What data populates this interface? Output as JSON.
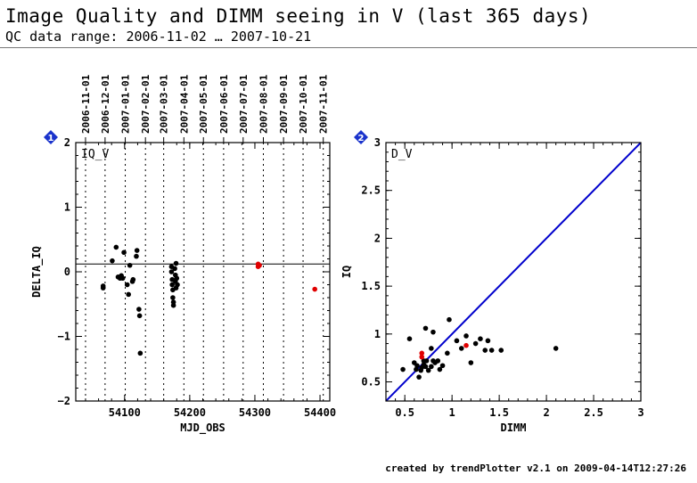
{
  "title": "Image Quality and DIMM seeing in V (last 365 days)",
  "subtitle": "QC data range: 2006-11-02 … 2007-10-21",
  "footer": "created by trendPlotter v2.1 on 2009-04-14T12:27:26",
  "colors": {
    "axis": "#000000",
    "points": "#000000",
    "recent": "#e00000",
    "diagonal": "#0000cc",
    "badge": "#1a33cc"
  },
  "chart_data": [
    {
      "type": "scatter",
      "panel_badge": "1",
      "panel_label": "IQ_V",
      "xlabel": "MJD_OBS",
      "ylabel": "DELTA_IQ",
      "xlim": [
        54025,
        54415
      ],
      "ylim": [
        -2,
        2
      ],
      "x_ticks": [
        54100,
        54200,
        54300,
        54400
      ],
      "y_ticks": [
        -2,
        -1,
        0,
        1,
        2
      ],
      "reference_line_y": 0.12,
      "date_ticks": [
        {
          "label": "2006-11-01",
          "mjd": 54040
        },
        {
          "label": "2006-12-01",
          "mjd": 54070
        },
        {
          "label": "2007-01-01",
          "mjd": 54101
        },
        {
          "label": "2007-02-01",
          "mjd": 54132
        },
        {
          "label": "2007-03-01",
          "mjd": 54160
        },
        {
          "label": "2007-04-01",
          "mjd": 54191
        },
        {
          "label": "2007-05-01",
          "mjd": 54221
        },
        {
          "label": "2007-06-01",
          "mjd": 54252
        },
        {
          "label": "2007-07-01",
          "mjd": 54282
        },
        {
          "label": "2007-08-01",
          "mjd": 54313
        },
        {
          "label": "2007-09-01",
          "mjd": 54344
        },
        {
          "label": "2007-10-01",
          "mjd": 54374
        },
        {
          "label": "2007-11-01",
          "mjd": 54405
        }
      ],
      "series": [
        {
          "color": "#000000",
          "points": [
            [
              54067,
              -0.22
            ],
            [
              54067,
              -0.25
            ],
            [
              54081,
              0.17
            ],
            [
              54087,
              0.38
            ],
            [
              54090,
              -0.08
            ],
            [
              54093,
              -0.1
            ],
            [
              54095,
              -0.06
            ],
            [
              54097,
              -0.1
            ],
            [
              54099,
              0.3
            ],
            [
              54104,
              -0.2
            ],
            [
              54106,
              -0.35
            ],
            [
              54108,
              0.1
            ],
            [
              54112,
              -0.15
            ],
            [
              54113,
              -0.12
            ],
            [
              54118,
              0.24
            ],
            [
              54119,
              0.33
            ],
            [
              54122,
              -0.58
            ],
            [
              54123,
              -0.68
            ],
            [
              54124,
              -1.26
            ],
            [
              54172,
              0.08
            ],
            [
              54172,
              0.0
            ],
            [
              54173,
              -0.12
            ],
            [
              54173,
              -0.2
            ],
            [
              54174,
              -0.28
            ],
            [
              54174,
              -0.4
            ],
            [
              54175,
              -0.47
            ],
            [
              54175,
              -0.52
            ],
            [
              54177,
              0.05
            ],
            [
              54178,
              -0.05
            ],
            [
              54178,
              -0.15
            ],
            [
              54179,
              -0.25
            ],
            [
              54179,
              0.13
            ],
            [
              54180,
              -0.1
            ],
            [
              54181,
              -0.2
            ]
          ]
        },
        {
          "color": "#e00000",
          "points": [
            [
              54305,
              0.08
            ],
            [
              54305,
              0.12
            ],
            [
              54307,
              0.1
            ],
            [
              54392,
              -0.27
            ]
          ]
        }
      ]
    },
    {
      "type": "scatter",
      "panel_badge": "2",
      "panel_label": "D_V",
      "xlabel": "DIMM",
      "ylabel": "IQ",
      "xlim": [
        0.3,
        3
      ],
      "ylim": [
        0.3,
        3
      ],
      "x_ticks": [
        0.5,
        1,
        1.5,
        2,
        2.5,
        3
      ],
      "y_ticks": [
        0.5,
        1,
        1.5,
        2,
        2.5,
        3
      ],
      "diagonal": true,
      "series": [
        {
          "color": "#000000",
          "points": [
            [
              0.48,
              0.63
            ],
            [
              0.55,
              0.95
            ],
            [
              0.6,
              0.7
            ],
            [
              0.62,
              0.63
            ],
            [
              0.63,
              0.67
            ],
            [
              0.65,
              0.55
            ],
            [
              0.67,
              0.62
            ],
            [
              0.68,
              0.65
            ],
            [
              0.7,
              0.68
            ],
            [
              0.7,
              0.72
            ],
            [
              0.72,
              0.66
            ],
            [
              0.73,
              0.72
            ],
            [
              0.72,
              1.06
            ],
            [
              0.75,
              0.62
            ],
            [
              0.78,
              0.66
            ],
            [
              0.78,
              0.85
            ],
            [
              0.8,
              0.72
            ],
            [
              0.8,
              1.02
            ],
            [
              0.82,
              0.7
            ],
            [
              0.85,
              0.72
            ],
            [
              0.87,
              0.63
            ],
            [
              0.9,
              0.67
            ],
            [
              0.95,
              0.8
            ],
            [
              0.97,
              1.15
            ],
            [
              1.05,
              0.93
            ],
            [
              1.1,
              0.85
            ],
            [
              1.15,
              0.98
            ],
            [
              1.2,
              0.7
            ],
            [
              1.25,
              0.9
            ],
            [
              1.3,
              0.95
            ],
            [
              1.35,
              0.83
            ],
            [
              1.38,
              0.93
            ],
            [
              1.42,
              0.83
            ],
            [
              1.52,
              0.83
            ],
            [
              2.1,
              0.85
            ]
          ]
        },
        {
          "color": "#e00000",
          "points": [
            [
              0.68,
              0.76
            ],
            [
              0.68,
              0.8
            ],
            [
              1.15,
              0.88
            ]
          ]
        }
      ]
    }
  ]
}
